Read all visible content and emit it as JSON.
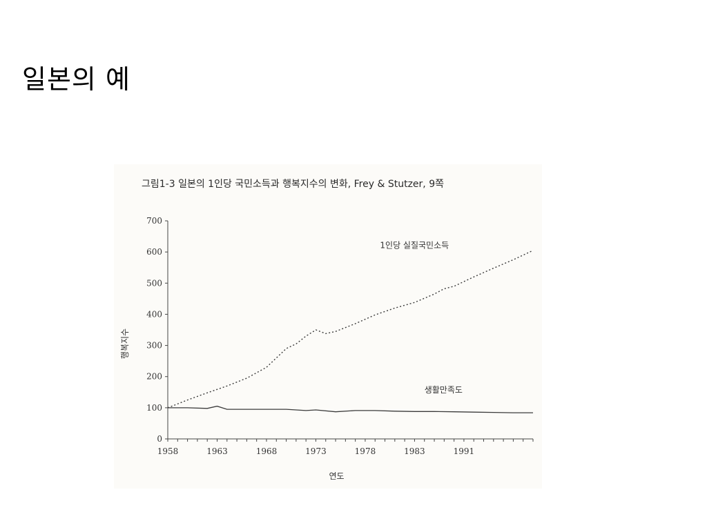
{
  "slide": {
    "title": "일본의 예"
  },
  "figure": {
    "caption": "그림1-3 일본의 1인당 국민소득과 행복지수의 변화, Frey & Stutzer, 9쪽"
  },
  "chart_data": {
    "type": "line",
    "title": "그림1-3 일본의 1인당 국민소득과 행복지수의 변화, Frey & Stutzer, 9쪽",
    "xlabel": "연도",
    "ylabel": "행복지수",
    "xlim": [
      1958,
      1995
    ],
    "ylim": [
      0,
      700
    ],
    "x_ticks": [
      "1958",
      "1963",
      "1968",
      "1973",
      "1978",
      "1983",
      "1991"
    ],
    "y_ticks": [
      "0",
      "100",
      "200",
      "300",
      "400",
      "500",
      "600",
      "700"
    ],
    "grid": false,
    "series": [
      {
        "name": "1인당 실질국민소득",
        "style": "dotted",
        "x": [
          1958,
          1960,
          1962,
          1964,
          1966,
          1968,
          1970,
          1971,
          1972,
          1973,
          1974,
          1975,
          1977,
          1979,
          1981,
          1983,
          1985,
          1986,
          1987,
          1989,
          1991,
          1993,
          1995
        ],
        "y": [
          100,
          125,
          148,
          170,
          195,
          230,
          290,
          305,
          330,
          350,
          338,
          345,
          370,
          398,
          420,
          438,
          465,
          482,
          490,
          520,
          548,
          575,
          605
        ]
      },
      {
        "name": "생활만족도",
        "style": "solid",
        "x": [
          1958,
          1960,
          1962,
          1963,
          1964,
          1966,
          1968,
          1970,
          1972,
          1973,
          1975,
          1977,
          1979,
          1981,
          1983,
          1985,
          1987,
          1989,
          1991,
          1993,
          1995
        ],
        "y": [
          100,
          100,
          98,
          105,
          95,
          95,
          95,
          95,
          91,
          93,
          87,
          91,
          91,
          89,
          88,
          88,
          87,
          86,
          85,
          84,
          84
        ]
      }
    ]
  }
}
